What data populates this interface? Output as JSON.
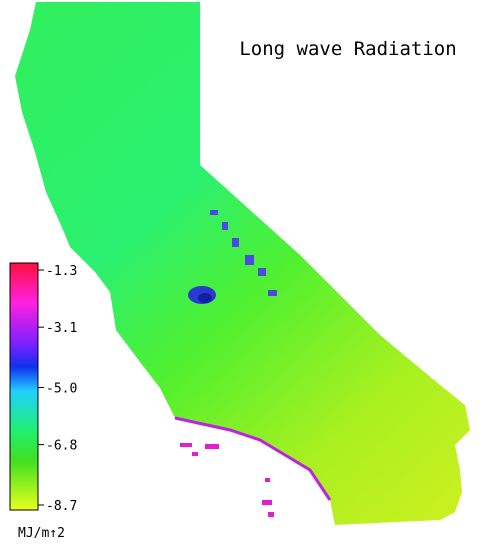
{
  "title": "Long wave Radiation",
  "colorbar": {
    "ticks": [
      {
        "value": -1.3,
        "label": "-1.3"
      },
      {
        "value": -3.1,
        "label": "-3.1"
      },
      {
        "value": -5.0,
        "label": "-5.0"
      },
      {
        "value": -6.8,
        "label": "-6.8"
      },
      {
        "value": -8.7,
        "label": "-8.7"
      }
    ],
    "unit": "MJ/m↑2"
  }
}
